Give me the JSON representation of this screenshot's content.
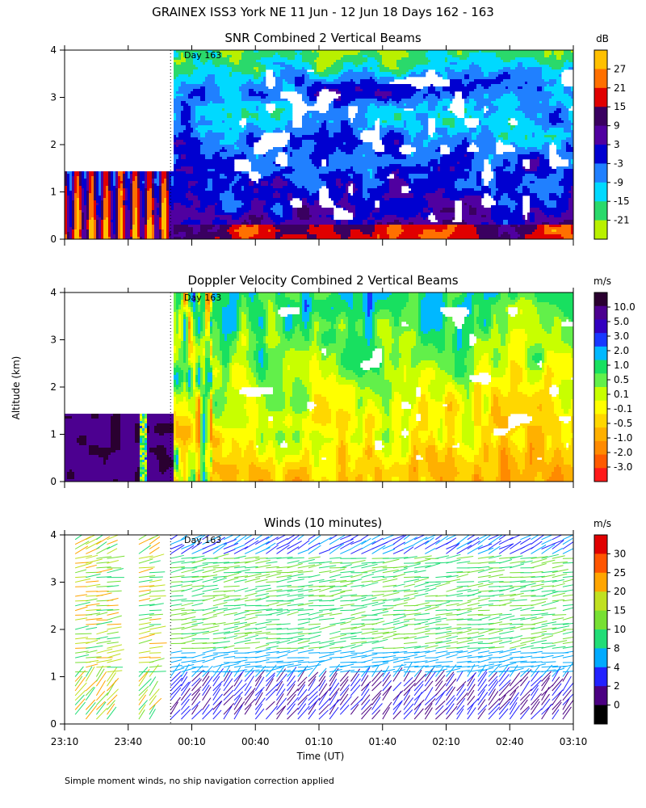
{
  "figure_title": "GRAINEX ISS3 York NE  11 Jun - 12 Jun 18 Days 162 - 163",
  "footer_note": "Simple moment winds, no ship navigation correction applied",
  "colors": {
    "snr": [
      "#b9f000",
      "#2ad96b",
      "#00d9ff",
      "#2080ff",
      "#0000d0",
      "#5000a0",
      "#3a0060",
      "#e00000",
      "#ff7000",
      "#ffc000"
    ],
    "vel": [
      "#ff1a1a",
      "#ff5a00",
      "#ff8a00",
      "#ffb000",
      "#ffd700",
      "#ffff00",
      "#c8ff00",
      "#62f04a",
      "#18e060",
      "#00b8ff",
      "#1838ff",
      "#3200c0",
      "#4c0090",
      "#2a0030"
    ],
    "wind": [
      "#000000",
      "#4b0082",
      "#2222ff",
      "#00aaff",
      "#22dd77",
      "#77e033",
      "#c0e020",
      "#ffa500",
      "#ff5500",
      "#e00000"
    ]
  },
  "chart_data": [
    {
      "type": "heatmap",
      "title": "SNR Combined 2 Vertical Beams",
      "xlabel": "",
      "ylabel": "",
      "xlim": [
        "23:10",
        "03:10"
      ],
      "ylim": [
        0,
        4
      ],
      "y_ticks": [
        "0",
        "1",
        "2",
        "3",
        "4"
      ],
      "annotation": "Day 163",
      "annotation_time": "00:00",
      "colorbar": {
        "unit": "dB",
        "ticks": [
          "27",
          "21",
          "15",
          "9",
          "3",
          "-3",
          "-9",
          "-15",
          "-21"
        ]
      },
      "coverage": [
        {
          "from": "23:10",
          "to": "00:00",
          "max_altitude_km": 1.4
        },
        {
          "from": "00:00",
          "to": "03:10",
          "max_altitude_km": 4.0
        }
      ]
    },
    {
      "type": "heatmap",
      "title": "Doppler Velocity Combined 2 Vertical Beams",
      "xlabel": "",
      "ylabel": "Altitude (km)",
      "xlim": [
        "23:10",
        "03:10"
      ],
      "ylim": [
        0,
        4
      ],
      "y_ticks": [
        "0",
        "1",
        "2",
        "3",
        "4"
      ],
      "annotation": "Day 163",
      "annotation_time": "00:00",
      "colorbar": {
        "unit": "m/s",
        "ticks": [
          "10.0",
          "5.0",
          "3.0",
          "2.0",
          "1.0",
          "0.5",
          "0.1",
          "-0.1",
          "-0.5",
          "-1.0",
          "-2.0",
          "-3.0"
        ]
      },
      "coverage": [
        {
          "from": "23:10",
          "to": "00:00",
          "max_altitude_km": 1.4
        },
        {
          "from": "00:00",
          "to": "03:10",
          "max_altitude_km": 4.0
        }
      ]
    },
    {
      "type": "scatter",
      "title": "Winds (10 minutes)",
      "xlabel": "Time (UT)",
      "ylabel": "",
      "xlim": [
        "23:10",
        "03:10"
      ],
      "ylim": [
        0,
        4
      ],
      "x_ticks": [
        "23:10",
        "23:40",
        "00:10",
        "00:40",
        "01:10",
        "01:40",
        "02:10",
        "02:40",
        "03:10"
      ],
      "y_ticks": [
        "0",
        "1",
        "2",
        "3",
        "4"
      ],
      "annotation": "Day 163",
      "annotation_time": "00:00",
      "colorbar": {
        "unit": "m/s",
        "ticks": [
          "30",
          "25",
          "20",
          "15",
          "10",
          "8",
          "4",
          "2",
          "0"
        ]
      },
      "profile_times": [
        "23:15",
        "23:20",
        "23:25",
        "23:30",
        "23:45",
        "23:50",
        "00:00",
        "00:05",
        "00:10",
        "00:15",
        "00:20",
        "00:25",
        "00:30",
        "00:35",
        "00:40",
        "00:45",
        "00:50",
        "00:55",
        "01:00",
        "01:05",
        "01:10",
        "01:15",
        "01:20",
        "01:25",
        "01:30",
        "01:35",
        "01:40",
        "01:45",
        "01:50",
        "01:55",
        "02:00",
        "02:05",
        "02:10",
        "02:15",
        "02:20",
        "02:25",
        "02:30",
        "02:35",
        "02:40",
        "02:45",
        "02:50",
        "02:55",
        "03:00",
        "03:05"
      ]
    }
  ]
}
